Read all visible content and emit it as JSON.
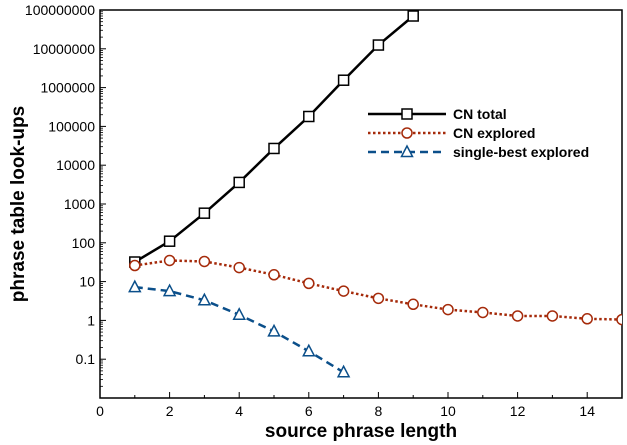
{
  "chart_data": {
    "type": "line",
    "title": "",
    "xlabel": "source phrase length",
    "ylabel": "phrase table look-ups",
    "xlim": [
      0,
      15
    ],
    "ylim": [
      0.01,
      100000000
    ],
    "y_scale": "log",
    "grid": false,
    "legend_position": "top-right",
    "x_ticks": [
      0,
      2,
      4,
      6,
      8,
      10,
      12,
      14
    ],
    "x_tick_labels": [
      "0",
      "2",
      "4",
      "6",
      "8",
      "10",
      "12",
      "14"
    ],
    "y_ticks": [
      0.1,
      1,
      10,
      100,
      1000,
      10000,
      100000,
      1000000,
      10000000,
      100000000
    ],
    "y_tick_labels": [
      "0.1",
      "1",
      "10",
      "100",
      "1000",
      "10000",
      "100000",
      "1000000",
      "10000000",
      "100000000"
    ],
    "series": [
      {
        "name": "CN total",
        "color": "#000000",
        "line": "solid",
        "marker": "square",
        "x": [
          1,
          2,
          3,
          4,
          5,
          6,
          7,
          8,
          9
        ],
        "values": [
          32,
          110,
          580,
          3600,
          27000,
          180000,
          1550000,
          12500000,
          70000000
        ]
      },
      {
        "name": "CN explored",
        "color": "#a52a0a",
        "line": "dotted",
        "marker": "circle",
        "x": [
          1,
          2,
          3,
          4,
          5,
          6,
          7,
          8,
          9,
          10,
          11,
          12,
          13,
          14,
          15
        ],
        "values": [
          26,
          35,
          33,
          23,
          15,
          9,
          5.7,
          3.7,
          2.6,
          1.9,
          1.6,
          1.3,
          1.3,
          1.1,
          1.05
        ]
      },
      {
        "name": "single-best explored",
        "color": "#0b4f8a",
        "line": "dashed",
        "marker": "triangle",
        "x": [
          1,
          2,
          3,
          4,
          5,
          6,
          7
        ],
        "values": [
          7.2,
          5.7,
          3.3,
          1.4,
          0.52,
          0.16,
          0.046
        ]
      }
    ]
  }
}
